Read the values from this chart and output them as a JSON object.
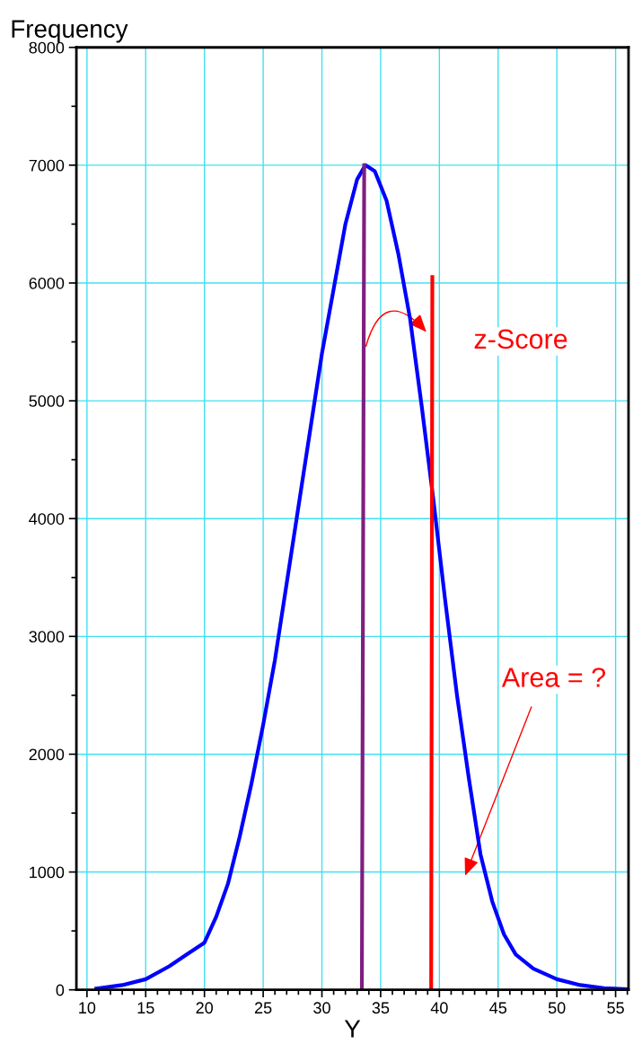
{
  "chart_data": {
    "type": "line",
    "xlabel": "Y",
    "ylabel": "Frequency",
    "xlim": [
      9.1,
      56.1
    ],
    "ylim": [
      0,
      8000
    ],
    "xticks": [
      10,
      15,
      20,
      25,
      30,
      35,
      40,
      45,
      50,
      55
    ],
    "yticks": [
      0,
      1000,
      2000,
      3000,
      4000,
      5000,
      6000,
      7000,
      8000
    ],
    "grid": true,
    "marker": "none",
    "line_style": "solid",
    "series": [
      {
        "color": "#0000ff",
        "x": [
          10.8,
          13,
          15,
          17,
          18.5,
          20,
          21,
          22,
          23,
          24,
          25,
          26,
          27,
          28,
          29,
          30,
          31,
          32,
          33,
          33.7,
          34.5,
          35.5,
          36.5,
          37.5,
          38.5,
          39.5,
          40.5,
          41.5,
          42.5,
          43.5,
          44.5,
          45.5,
          46.5,
          48,
          50,
          52,
          54,
          56
        ],
        "values": [
          10,
          40,
          90,
          200,
          300,
          400,
          620,
          900,
          1300,
          1750,
          2250,
          2800,
          3450,
          4100,
          4750,
          5400,
          5950,
          6500,
          6880,
          7000,
          6950,
          6700,
          6250,
          5700,
          4950,
          4150,
          3300,
          2500,
          1800,
          1150,
          750,
          470,
          300,
          180,
          90,
          40,
          15,
          5
        ]
      },
      {
        "color": "#7f1f7f",
        "x": [
          33.4,
          33.6
        ],
        "values": [
          0,
          7000
        ]
      },
      {
        "color": "#ff0000",
        "x": [
          39.3,
          39.4
        ],
        "values": [
          0,
          6050
        ]
      }
    ],
    "annotations": [
      "z-Score",
      "Area = ?"
    ]
  }
}
